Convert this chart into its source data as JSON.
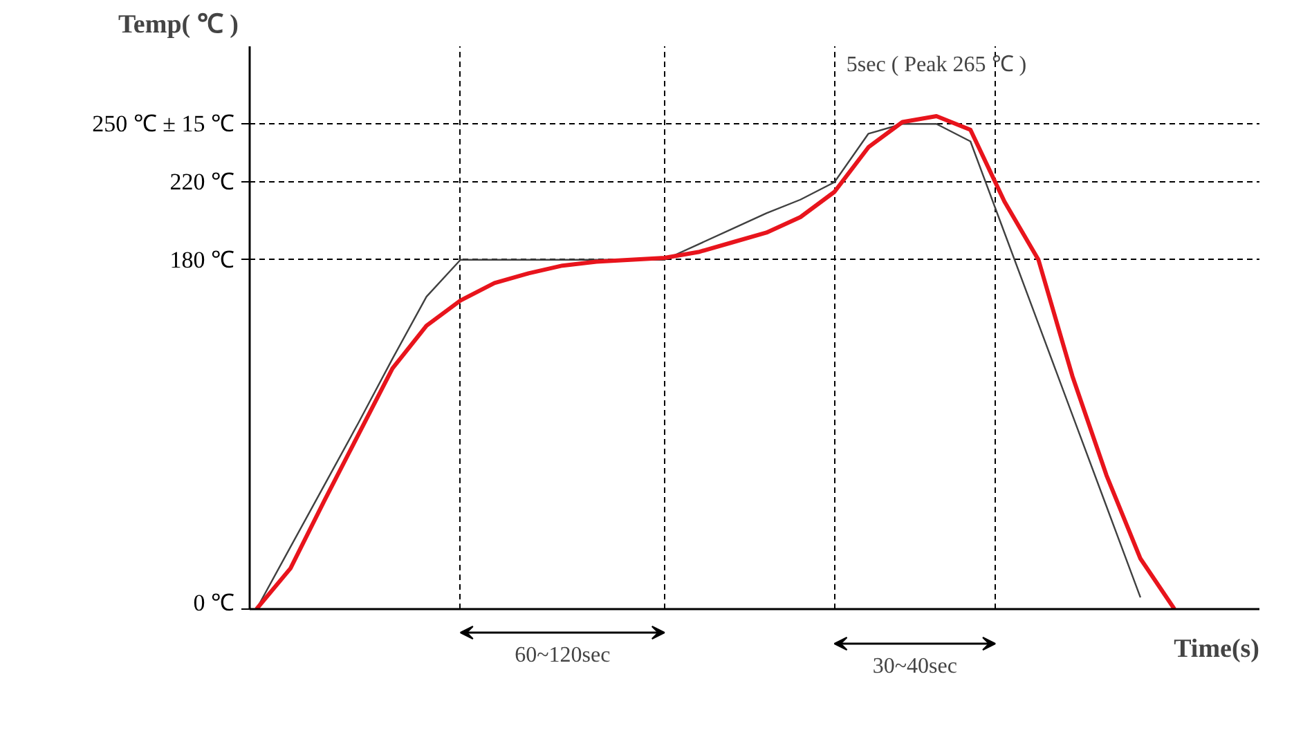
{
  "chart_data": {
    "type": "line",
    "xlabel": "Time(s)",
    "ylabel": "Temp( ℃ )",
    "categories": [
      null,
      null,
      null,
      null,
      null,
      null,
      null,
      null,
      null,
      null,
      null,
      null,
      null,
      null,
      null,
      null,
      null,
      null,
      null,
      null,
      null,
      null,
      null,
      null,
      null,
      null,
      null,
      null
    ],
    "series": [
      {
        "color": "#e8141c",
        "values": [
          0,
          21,
          56,
          90,
          124,
          146,
          159,
          168,
          173,
          177,
          179,
          180,
          181,
          184,
          189,
          194,
          202,
          215,
          238,
          251,
          254,
          247,
          210,
          180,
          120,
          69,
          26,
          0
        ]
      },
      {
        "color": "#404040",
        "values": [
          0,
          32,
          64,
          96,
          129,
          161,
          180,
          180,
          180,
          180,
          180,
          180,
          180,
          188,
          196,
          204,
          211,
          220,
          245,
          250,
          250,
          241,
          194,
          147,
          100,
          53,
          6,
          null
        ]
      }
    ],
    "ylim": [
      0,
      290
    ],
    "yticks": [
      {
        "value": 0,
        "label": "0 ℃"
      },
      {
        "value": 180,
        "label": "180 ℃"
      },
      {
        "value": 220,
        "label": "220 ℃"
      },
      {
        "value": 250,
        "label": "250 ℃ ± 15 ℃"
      }
    ],
    "tick_labels": "y",
    "grid": true,
    "legend": false,
    "line_style": "solid",
    "annotations": [
      "60~120sec",
      "30~40sec",
      "5sec ( Peak 265 ℃ )"
    ]
  }
}
